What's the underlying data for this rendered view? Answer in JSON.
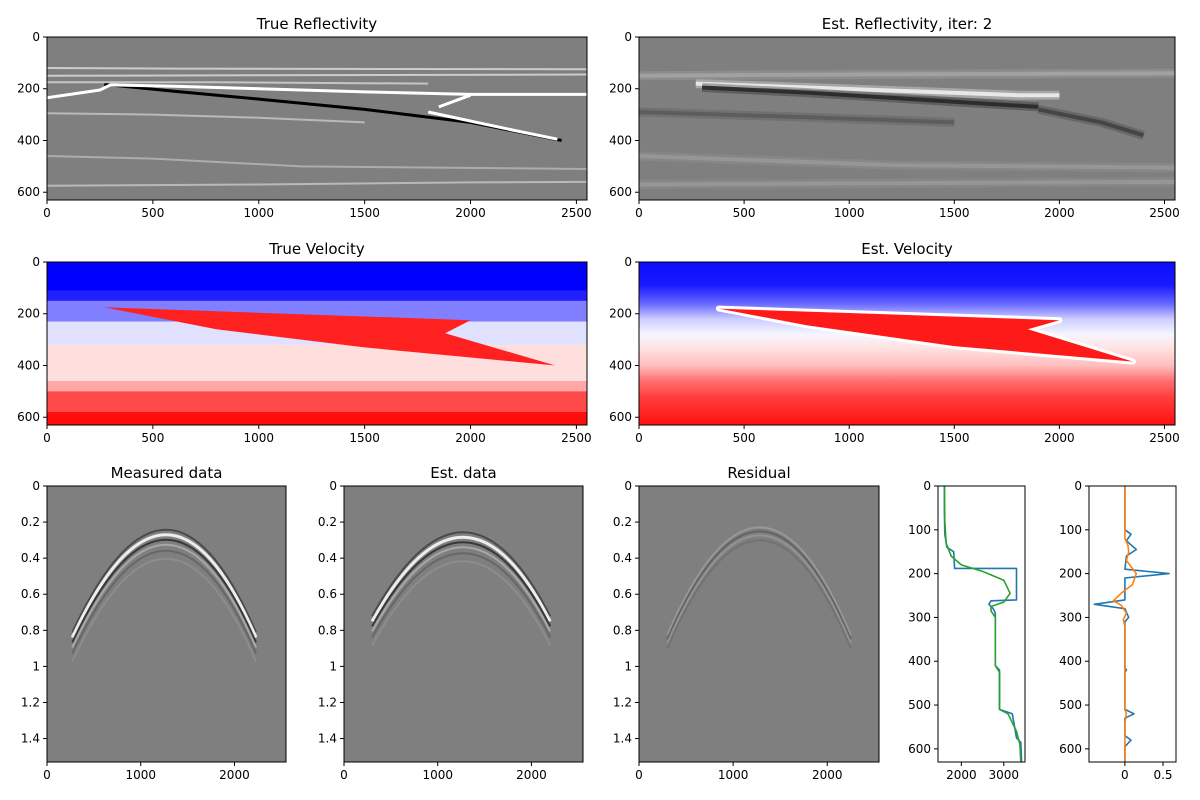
{
  "chart_data": [
    {
      "type": "heatmap",
      "title": "True Reflectivity",
      "colormap": "gray",
      "xlim": [
        0,
        2550
      ],
      "ylim": [
        630,
        0
      ],
      "xticks": [
        0,
        500,
        1000,
        1500,
        2000,
        2500
      ],
      "yticks": [
        0,
        200,
        400,
        600
      ],
      "lines": [
        {
          "value": -1,
          "points": [
            [
              270,
              183
            ],
            [
              600,
              210
            ],
            [
              1000,
              240
            ],
            [
              1500,
              280
            ],
            [
              2000,
              330
            ],
            [
              2400,
              395
            ],
            [
              2430,
              400
            ]
          ]
        },
        {
          "value": 1,
          "points": [
            [
              0,
              235
            ],
            [
              250,
              205
            ],
            [
              300,
              185
            ],
            [
              600,
              190
            ],
            [
              1000,
              200
            ],
            [
              1500,
              212
            ],
            [
              2000,
              222
            ],
            [
              2550,
              222
            ]
          ]
        },
        {
          "value": 1,
          "points": [
            [
              1800,
              290
            ],
            [
              2200,
              360
            ],
            [
              2410,
              395
            ]
          ]
        },
        {
          "value": 1,
          "points": [
            [
              1850,
              270
            ],
            [
              2000,
              225
            ]
          ]
        },
        {
          "value": 0.6,
          "points": [
            [
              0,
              120
            ],
            [
              600,
              122
            ],
            [
              2550,
              125
            ]
          ]
        },
        {
          "value": 0.6,
          "points": [
            [
              0,
              150
            ],
            [
              1000,
              148
            ],
            [
              2550,
              145
            ]
          ]
        },
        {
          "value": 0.55,
          "points": [
            [
              0,
              175
            ],
            [
              800,
              175
            ],
            [
              1800,
              180
            ]
          ]
        },
        {
          "value": 0.45,
          "points": [
            [
              0,
              295
            ],
            [
              500,
              300
            ],
            [
              1000,
              312
            ],
            [
              1500,
              330
            ]
          ]
        },
        {
          "value": 0.35,
          "points": [
            [
              0,
              460
            ],
            [
              500,
              470
            ],
            [
              1200,
              500
            ],
            [
              2550,
              510
            ]
          ]
        },
        {
          "value": 0.45,
          "points": [
            [
              0,
              575
            ],
            [
              1000,
              570
            ],
            [
              2000,
              562
            ],
            [
              2550,
              560
            ]
          ]
        }
      ]
    },
    {
      "type": "heatmap",
      "title": "Est. Reflectivity, iter: 2",
      "colormap": "gray",
      "xlim": [
        0,
        2550
      ],
      "ylim": [
        630,
        0
      ],
      "xticks": [
        0,
        500,
        1000,
        1500,
        2000,
        2500
      ],
      "yticks": [
        0,
        200,
        400,
        600
      ],
      "lines": [
        {
          "value": 0.9,
          "points": [
            [
              270,
              180
            ],
            [
              800,
              195
            ],
            [
              1300,
              210
            ],
            [
              1800,
              225
            ],
            [
              2000,
              225
            ]
          ]
        },
        {
          "value": -0.7,
          "points": [
            [
              300,
              195
            ],
            [
              800,
              215
            ],
            [
              1300,
              240
            ],
            [
              1900,
              270
            ]
          ]
        },
        {
          "value": -0.5,
          "points": [
            [
              1900,
              280
            ],
            [
              2200,
              330
            ],
            [
              2400,
              380
            ]
          ]
        },
        {
          "value": 0.3,
          "points": [
            [
              0,
              150
            ],
            [
              1000,
              145
            ],
            [
              2550,
              140
            ]
          ]
        },
        {
          "value": -0.3,
          "points": [
            [
              0,
              290
            ],
            [
              800,
              310
            ],
            [
              1500,
              330
            ]
          ]
        },
        {
          "value": 0.2,
          "points": [
            [
              0,
              460
            ],
            [
              1200,
              495
            ],
            [
              2550,
              505
            ]
          ]
        },
        {
          "value": 0.2,
          "points": [
            [
              0,
              570
            ],
            [
              2550,
              560
            ]
          ]
        }
      ]
    },
    {
      "type": "heatmap",
      "title": "True Velocity",
      "colormap": "bwr",
      "xlim": [
        0,
        2550
      ],
      "ylim": [
        630,
        0
      ],
      "xticks": [
        0,
        500,
        1000,
        1500,
        2000,
        2500
      ],
      "yticks": [
        0,
        200,
        400,
        600
      ],
      "layers": [
        {
          "color": "#0000ff",
          "top": 0
        },
        {
          "color": "#2121ff",
          "top": 110
        },
        {
          "color": "#7f7fff",
          "top": 150
        },
        {
          "color": "#e0e0ff",
          "top": 230
        },
        {
          "color": "#ffdede",
          "top": 320
        },
        {
          "color": "#ffa8a8",
          "top": 460
        },
        {
          "color": "#ff4a4a",
          "top": 500
        },
        {
          "color": "#ff0d0d",
          "top": 580
        }
      ],
      "wedge": {
        "color": "#ff2020",
        "points": [
          [
            270,
            175
          ],
          [
            2000,
            225
          ],
          [
            1880,
            275
          ],
          [
            2400,
            400
          ],
          [
            1500,
            330
          ],
          [
            800,
            260
          ]
        ]
      }
    },
    {
      "type": "heatmap",
      "title": "Est. Velocity",
      "colormap": "bwr",
      "xlim": [
        0,
        2550
      ],
      "ylim": [
        630,
        0
      ],
      "xticks": [
        0,
        500,
        1000,
        1500,
        2000,
        2500
      ],
      "yticks": [
        0,
        200,
        400,
        600
      ],
      "stops": [
        [
          0,
          "#0c0cff"
        ],
        [
          90,
          "#1a1aff"
        ],
        [
          160,
          "#6666ff"
        ],
        [
          220,
          "#ccccff"
        ],
        [
          280,
          "#f6f6ff"
        ],
        [
          330,
          "#ffe4e4"
        ],
        [
          400,
          "#ffbdbd"
        ],
        [
          460,
          "#ff7070"
        ],
        [
          520,
          "#ff4040"
        ],
        [
          630,
          "#ff1010"
        ]
      ],
      "wedge": {
        "color": "#ff1a1a",
        "points": [
          [
            380,
            180
          ],
          [
            2000,
            225
          ],
          [
            1850,
            260
          ],
          [
            2350,
            385
          ],
          [
            1500,
            325
          ],
          [
            800,
            245
          ]
        ]
      }
    },
    {
      "type": "heatmap",
      "title": "Measured data",
      "colormap": "gray",
      "xlim": [
        0,
        2550
      ],
      "ylim": [
        1.53,
        0
      ],
      "xticks": [
        0,
        1000,
        2000
      ],
      "yticks": [
        0.0,
        0.2,
        0.4,
        0.6,
        0.8,
        1.0,
        1.2,
        1.4
      ],
      "event": {
        "apex_x": 1290,
        "apex_t": 0.24,
        "x_min": 270,
        "x_max": 2230,
        "edge_t": 0.84
      }
    },
    {
      "type": "heatmap",
      "title": "Est. data",
      "colormap": "gray",
      "xlim": [
        0,
        2550
      ],
      "ylim": [
        1.53,
        0
      ],
      "xticks": [
        0,
        1000,
        2000
      ],
      "yticks": [
        0.0,
        0.2,
        0.4,
        0.6,
        0.8,
        1.0,
        1.2,
        1.4
      ],
      "event": {
        "apex_x": 1290,
        "apex_t": 0.26,
        "x_min": 300,
        "x_max": 2200,
        "edge_t": 0.75
      }
    },
    {
      "type": "heatmap",
      "title": "Residual",
      "colormap": "gray",
      "xlim": [
        0,
        2550
      ],
      "ylim": [
        1.53,
        0
      ],
      "xticks": [
        0,
        1000,
        2000
      ],
      "yticks": [
        0.0,
        0.2,
        0.4,
        0.6,
        0.8,
        1.0,
        1.2,
        1.4
      ],
      "event": {
        "apex_x": 1290,
        "apex_t": 0.22,
        "x_min": 300,
        "x_max": 2250,
        "edge_t": 0.85,
        "weak": true
      }
    },
    {
      "type": "line",
      "title": "",
      "xlim": [
        1450,
        3500
      ],
      "ylim": [
        630,
        0
      ],
      "xticks": [
        2000,
        3000
      ],
      "yticks": [
        0,
        100,
        200,
        300,
        400,
        500,
        600
      ],
      "series": [
        {
          "color": "#1f77b4",
          "points": [
            [
              1600,
              0
            ],
            [
              1600,
              60
            ],
            [
              1610,
              110
            ],
            [
              1660,
              140
            ],
            [
              1820,
              150
            ],
            [
              1840,
              188
            ],
            [
              3300,
              188
            ],
            [
              3300,
              200
            ],
            [
              3300,
              260
            ],
            [
              2700,
              262
            ],
            [
              2650,
              270
            ],
            [
              2750,
              280
            ],
            [
              2800,
              290
            ],
            [
              2800,
              300
            ],
            [
              2800,
              410
            ],
            [
              2900,
              420
            ],
            [
              2900,
              510
            ],
            [
              3200,
              520
            ],
            [
              3300,
              575
            ],
            [
              3400,
              585
            ],
            [
              3420,
              630
            ]
          ]
        },
        {
          "color": "#2ca02c",
          "points": [
            [
              1600,
              0
            ],
            [
              1610,
              80
            ],
            [
              1640,
              130
            ],
            [
              1760,
              160
            ],
            [
              2000,
              180
            ],
            [
              2500,
              195
            ],
            [
              3000,
              215
            ],
            [
              3150,
              245
            ],
            [
              3000,
              265
            ],
            [
              2700,
              275
            ],
            [
              2700,
              285
            ],
            [
              2800,
              300
            ],
            [
              2800,
              410
            ],
            [
              2900,
              425
            ],
            [
              2900,
              510
            ],
            [
              3100,
              520
            ],
            [
              3300,
              560
            ],
            [
              3380,
              590
            ],
            [
              3400,
              630
            ]
          ]
        }
      ]
    },
    {
      "type": "line",
      "title": "",
      "xlim": [
        -0.47,
        0.67
      ],
      "ylim": [
        630,
        0
      ],
      "xticks": [
        0.0,
        0.5
      ],
      "yticks": [
        0,
        100,
        200,
        300,
        400,
        500,
        600
      ],
      "series": [
        {
          "color": "#1f77b4",
          "points": [
            [
              0,
              0
            ],
            [
              0,
              100
            ],
            [
              0.08,
              110
            ],
            [
              0.02,
              125
            ],
            [
              0.15,
              145
            ],
            [
              0.02,
              160
            ],
            [
              0,
              190
            ],
            [
              0.58,
              200
            ],
            [
              0,
              210
            ],
            [
              0,
              260
            ],
            [
              -0.4,
              270
            ],
            [
              0,
              280
            ],
            [
              0.05,
              300
            ],
            [
              0,
              310
            ],
            [
              0,
              415
            ],
            [
              0.02,
              420
            ],
            [
              0,
              425
            ],
            [
              0,
              510
            ],
            [
              0.12,
              520
            ],
            [
              0,
              530
            ],
            [
              0,
              570
            ],
            [
              0.08,
              580
            ],
            [
              0,
              595
            ],
            [
              0,
              630
            ]
          ]
        },
        {
          "color": "#ff7f0e",
          "points": [
            [
              0,
              0
            ],
            [
              0,
              120
            ],
            [
              0.04,
              135
            ],
            [
              0.05,
              150
            ],
            [
              0.02,
              170
            ],
            [
              0.15,
              200
            ],
            [
              0.1,
              225
            ],
            [
              -0.05,
              245
            ],
            [
              -0.15,
              262
            ],
            [
              -0.05,
              272
            ],
            [
              0.02,
              290
            ],
            [
              -0.02,
              305
            ],
            [
              0,
              320
            ],
            [
              0,
              510
            ],
            [
              0.02,
              520
            ],
            [
              0,
              540
            ],
            [
              0,
              630
            ]
          ]
        }
      ]
    }
  ]
}
